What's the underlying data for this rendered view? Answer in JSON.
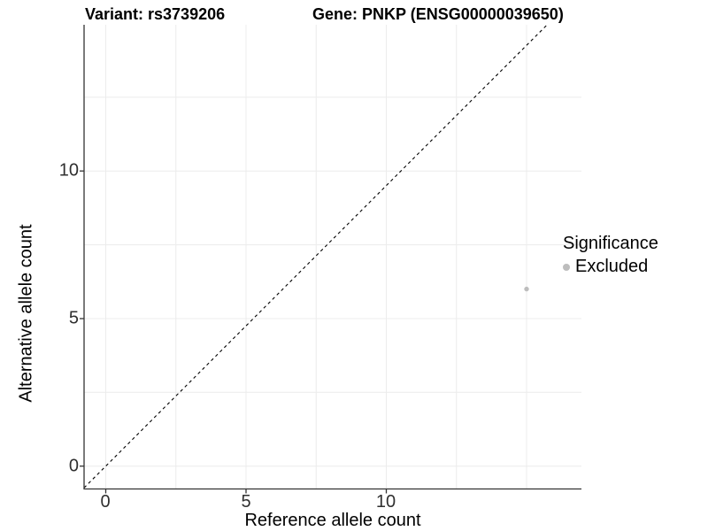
{
  "title": {
    "variant": "Variant: rs3739206",
    "gene": "Gene: PNKP (ENSG00000039650)"
  },
  "axes": {
    "x_label": "Reference allele count",
    "y_label": "Alternative allele count",
    "x_ticks": [
      "0",
      "5",
      "10"
    ],
    "y_ticks": [
      "0",
      "5",
      "10"
    ]
  },
  "legend": {
    "title": "Significance",
    "items": [
      {
        "label": "Excluded",
        "color": "#bdbdbd"
      }
    ]
  },
  "colors": {
    "point": "#bdbdbd",
    "axis_line": "#333333",
    "gridline": "#ececec",
    "tick_label": "#2f2f2f",
    "reference_line": "#000000"
  },
  "chart_data": {
    "type": "scatter",
    "title": "Variant: rs3739206   Gene: PNKP (ENSG00000039650)",
    "xlabel": "Reference allele count",
    "ylabel": "Alternative allele count",
    "xlim": [
      -0.8,
      17
    ],
    "ylim": [
      -0.8,
      15
    ],
    "x_tick_values": [
      0,
      5,
      10
    ],
    "y_tick_values": [
      0,
      5,
      10
    ],
    "grid": "major and minor gridlines every 2.5 units, light gray; left and bottom black axis lines only",
    "legend_position": "right",
    "series": [
      {
        "name": "Excluded",
        "color": "#bdbdbd",
        "points": [
          {
            "x": 15,
            "y": 6
          }
        ]
      }
    ],
    "reference_line": {
      "style": "dashed",
      "slope": 1,
      "intercept": 0,
      "note": "y = x identity diagonal"
    }
  }
}
